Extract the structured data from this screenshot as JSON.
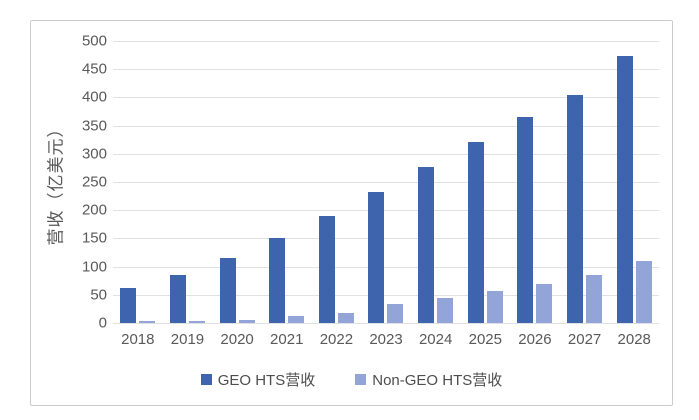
{
  "chart_data": {
    "type": "bar",
    "title": "",
    "ylabel": "营收（亿美元）",
    "xlabel": "",
    "categories": [
      "2018",
      "2019",
      "2020",
      "2021",
      "2022",
      "2023",
      "2024",
      "2025",
      "2026",
      "2027",
      "2028"
    ],
    "series": [
      {
        "name": "GEO HTS营收",
        "color": "#3D64AD",
        "values": [
          62,
          86,
          116,
          151,
          189,
          232,
          277,
          321,
          365,
          405,
          473
        ]
      },
      {
        "name": "Non-GEO HTS营收",
        "color": "#93A5D8",
        "values": [
          3,
          4,
          6,
          12,
          18,
          33,
          45,
          57,
          70,
          86,
          110
        ]
      }
    ],
    "y_axis": {
      "min": 0,
      "max": 500,
      "step": 50,
      "ticks": [
        "0",
        "50",
        "100",
        "150",
        "200",
        "250",
        "300",
        "350",
        "400",
        "450",
        "500"
      ]
    },
    "grid": true,
    "legend_position": "bottom",
    "colors": {
      "gridline": "#e1e1e4",
      "frame_border": "#cccccc",
      "tick_text": "#595959",
      "legend_text": "#4d4d4d",
      "background": "#ffffff"
    }
  }
}
